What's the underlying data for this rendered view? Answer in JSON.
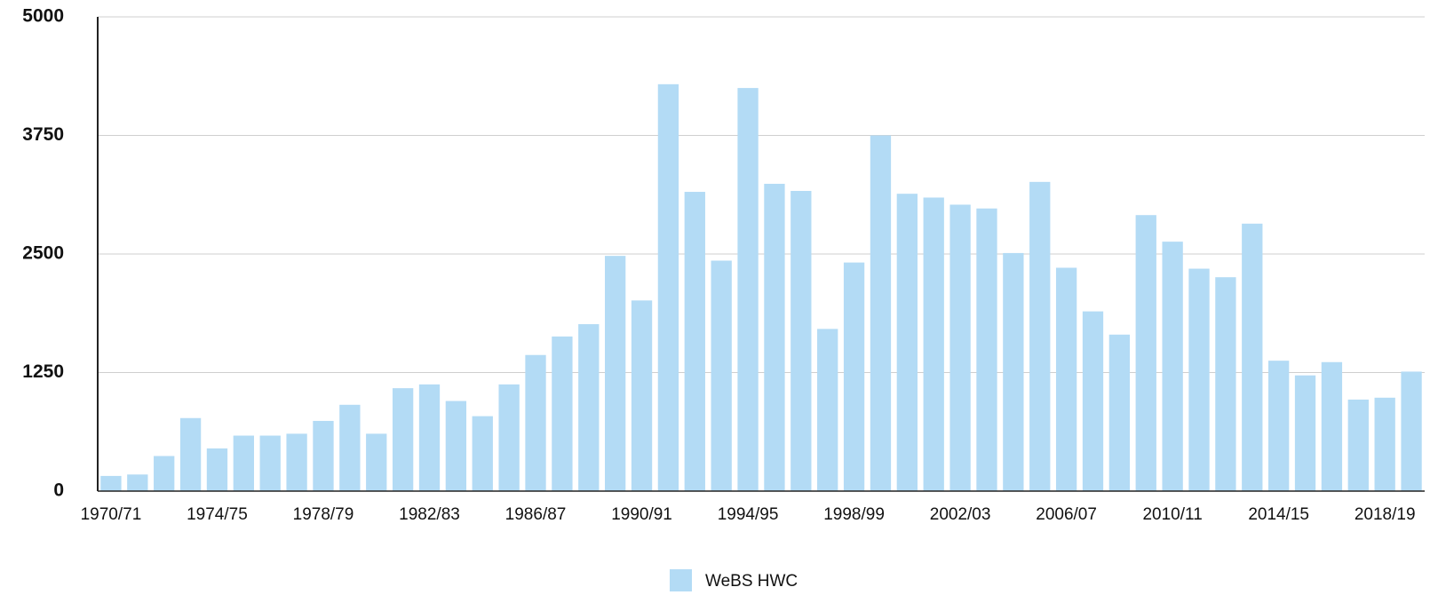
{
  "chart_data": {
    "type": "bar",
    "categories": [
      "1970/71",
      null,
      null,
      null,
      "1974/75",
      null,
      null,
      null,
      "1978/79",
      null,
      null,
      null,
      "1982/83",
      null,
      null,
      null,
      "1986/87",
      null,
      null,
      null,
      "1990/91",
      null,
      null,
      null,
      "1994/95",
      null,
      null,
      null,
      "1998/99",
      null,
      null,
      null,
      "2002/03",
      null,
      null,
      null,
      "2006/07",
      null,
      null,
      null,
      "2010/11",
      null,
      null,
      null,
      "2014/15",
      null,
      null,
      null,
      "2018/19",
      null
    ],
    "series": [
      {
        "name": "WeBS HWC",
        "color": "#b3dbf5",
        "values": [
          160,
          175,
          370,
          770,
          450,
          585,
          585,
          605,
          740,
          910,
          605,
          1085,
          1125,
          950,
          790,
          1125,
          1435,
          1630,
          1760,
          2480,
          2010,
          4290,
          3155,
          2430,
          4250,
          3240,
          3165,
          1710,
          2410,
          3750,
          3135,
          3095,
          3020,
          2980,
          2510,
          3260,
          2355,
          1895,
          1650,
          2910,
          2630,
          2345,
          2255,
          2820,
          1375,
          1220,
          1360,
          965,
          985,
          1260
        ]
      }
    ],
    "ylim": [
      0,
      5000
    ],
    "yticks": [
      0,
      1250,
      2500,
      3750,
      5000
    ],
    "grid": true
  }
}
